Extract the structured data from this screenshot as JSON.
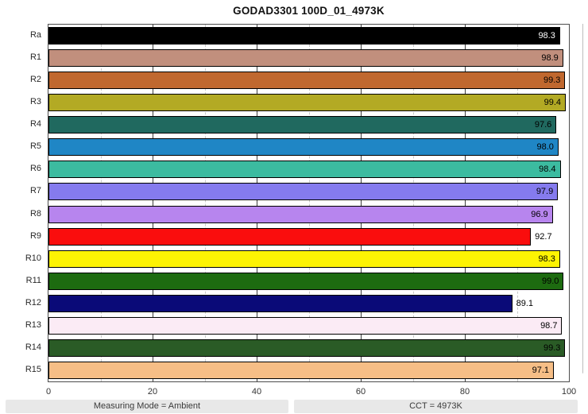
{
  "title": "GODAD3301 100D_01_4973K",
  "chart_data": {
    "type": "bar",
    "orientation": "horizontal",
    "title": "GODAD3301 100D_01_4973K",
    "categories": [
      "Ra",
      "R1",
      "R2",
      "R3",
      "R4",
      "R5",
      "R6",
      "R7",
      "R8",
      "R9",
      "R10",
      "R11",
      "R12",
      "R13",
      "R14",
      "R15"
    ],
    "values": [
      98.3,
      98.9,
      99.3,
      99.4,
      97.6,
      98.0,
      98.4,
      97.9,
      96.9,
      92.7,
      98.3,
      99.0,
      89.1,
      98.7,
      99.3,
      97.1
    ],
    "bar_colors": [
      "#000000",
      "#C18F7D",
      "#C0682F",
      "#B3AA24",
      "#20695F",
      "#1F86C5",
      "#3CBBA0",
      "#857BEE",
      "#B785EE",
      "#FA0D0D",
      "#FDF303",
      "#1D6B10",
      "#0A0A78",
      "#FBEBF5",
      "#2A5B26",
      "#F6BE86"
    ],
    "value_label_colors": [
      "#FFFFFF",
      "#000000",
      "#000000",
      "#000000",
      "#000000",
      "#000000",
      "#000000",
      "#000000",
      "#000000",
      "#000000",
      "#000000",
      "#000000",
      "#000000",
      "#000000",
      "#000000",
      "#000000"
    ],
    "value_decimals": 1,
    "inside_label_threshold": 95,
    "xlim": [
      0,
      100
    ],
    "x_major_ticks": [
      0,
      20,
      40,
      60,
      80,
      100
    ],
    "x_minor_gridlines": [
      10,
      30,
      50,
      70,
      90
    ],
    "grid": "vertical: major solid dark, minor dashed light",
    "legend": "none"
  },
  "footer": {
    "measuring_mode": "Measuring Mode = Ambient",
    "cct": "CCT = 4973K"
  }
}
